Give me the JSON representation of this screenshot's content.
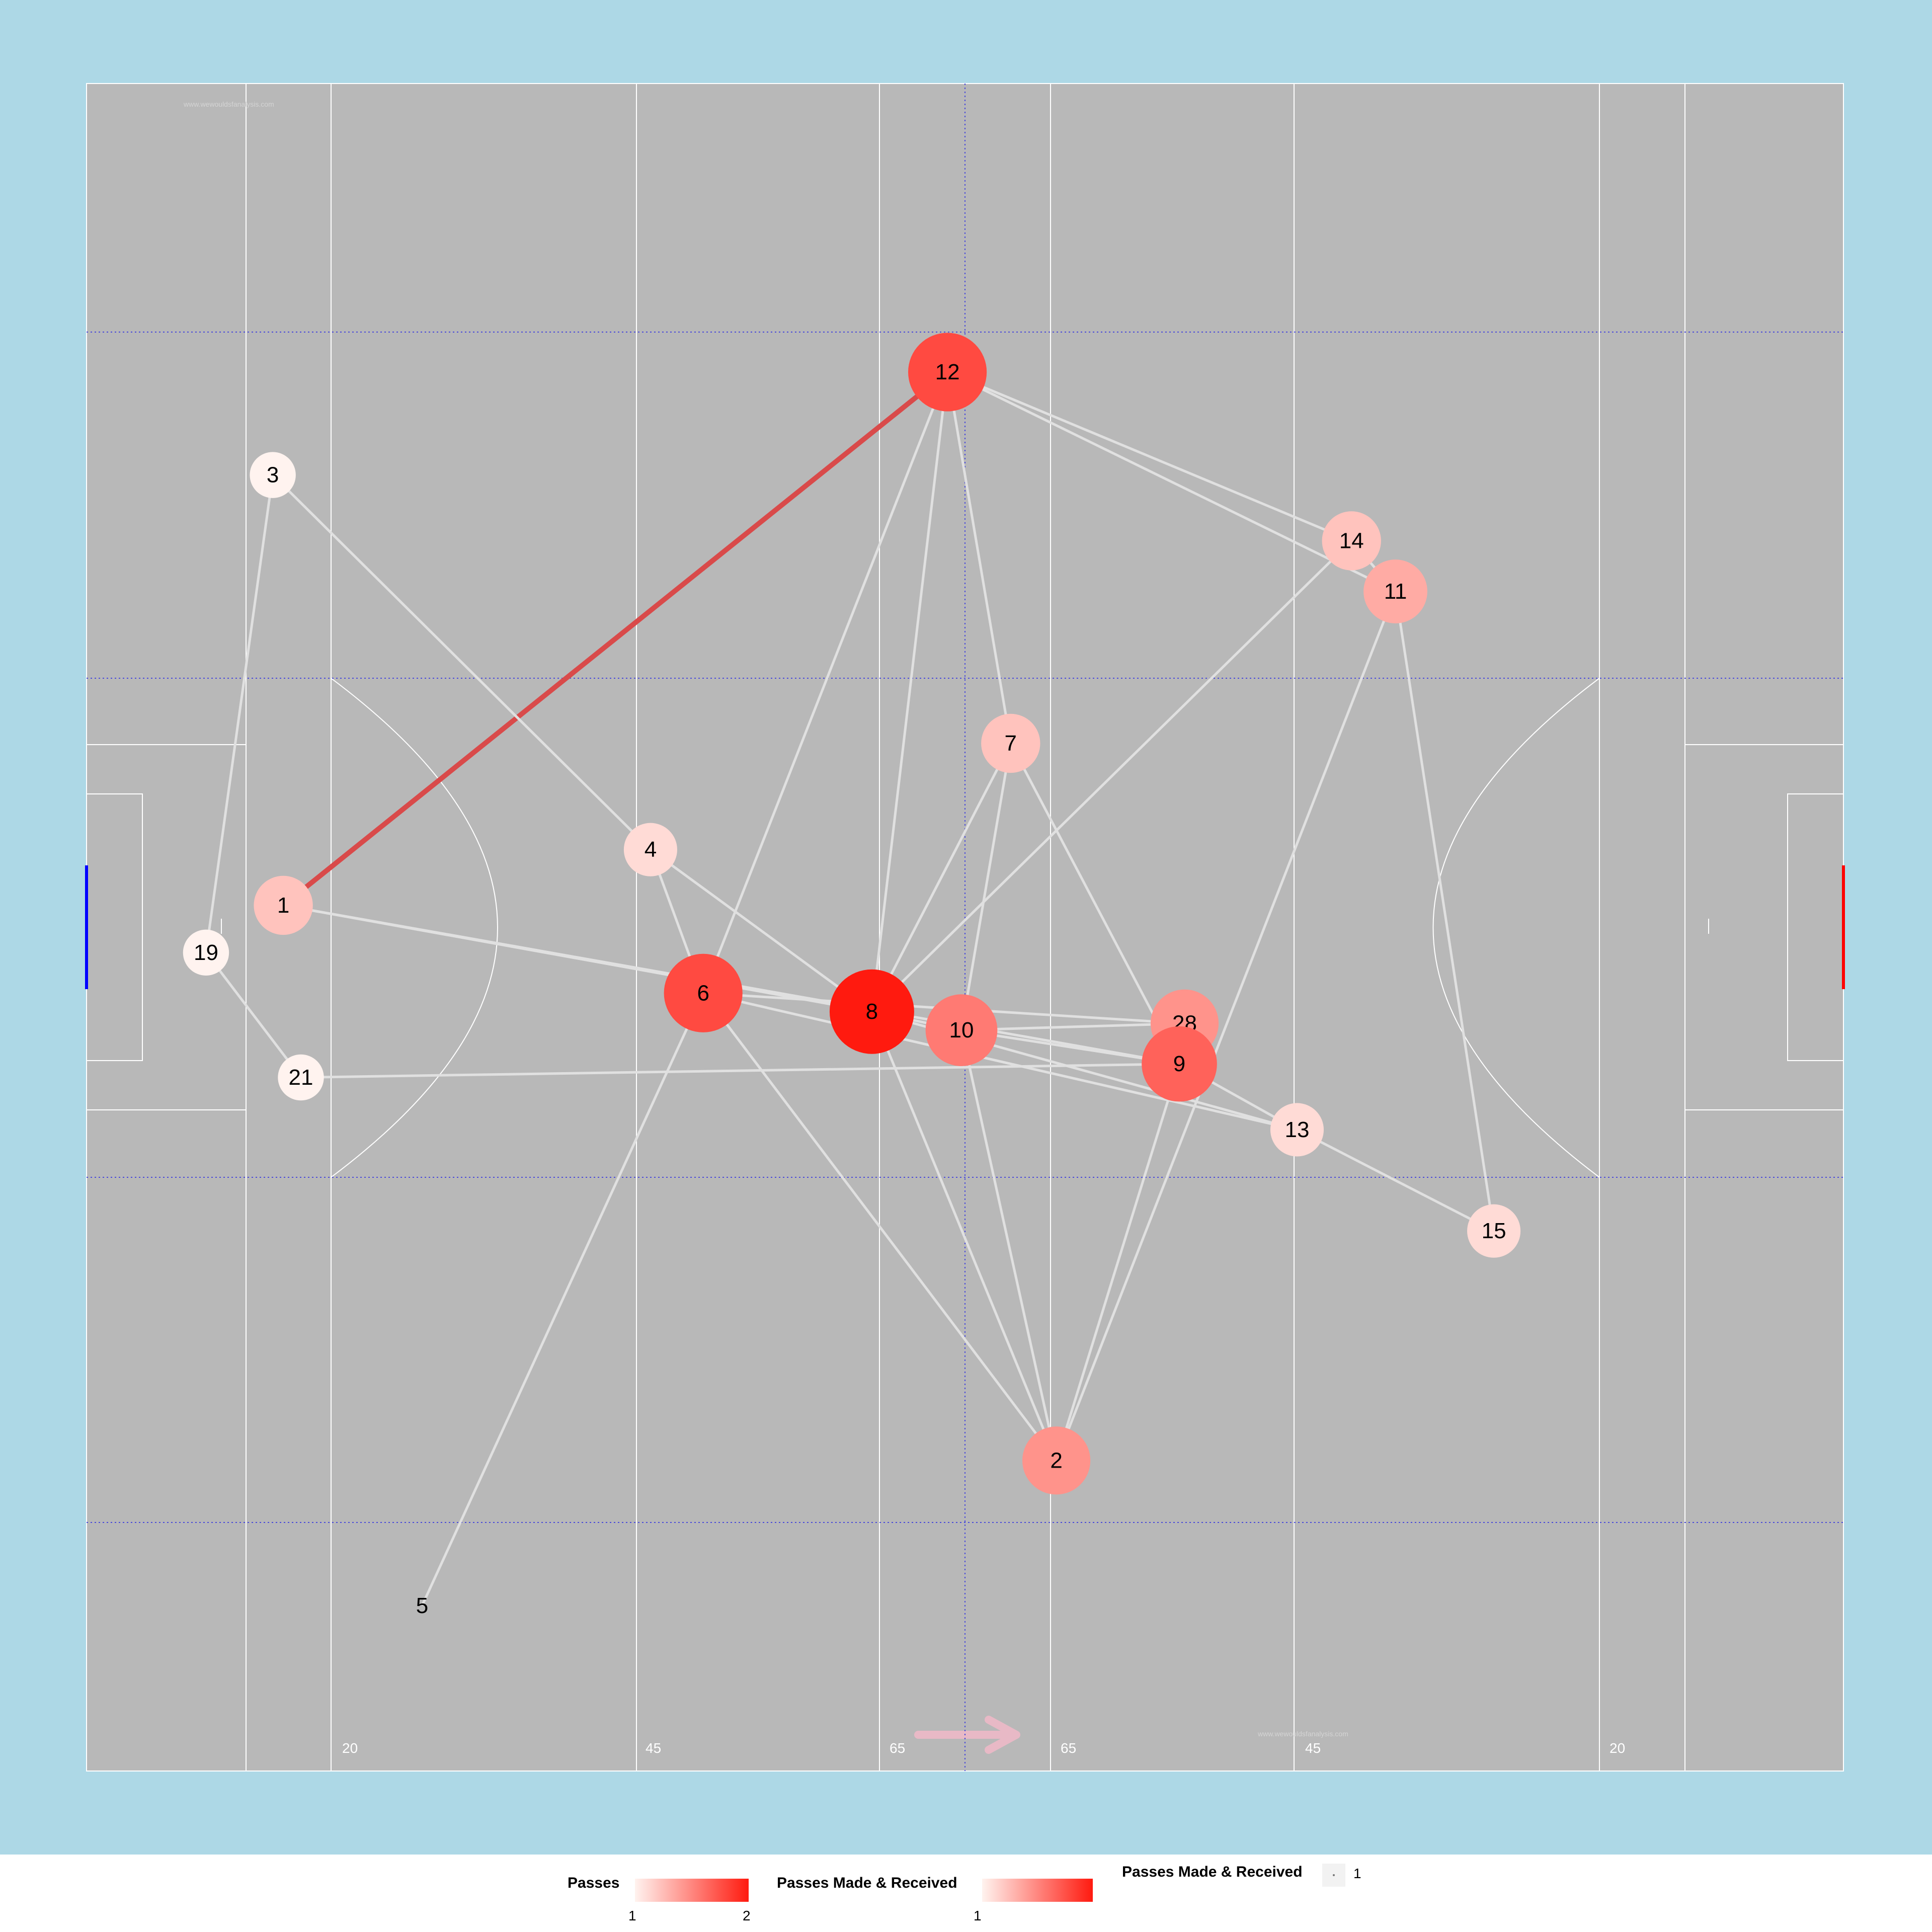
{
  "colors": {
    "panel_bg": "#add8e6",
    "pitch": "#b8b8b8",
    "pitch_lines": "#ffffff",
    "guide_lines": "#4a4ad9",
    "edge_default": "#e0e0e0",
    "edge_strong": "#d94a4a",
    "goal_left": "#0000ff",
    "goal_right": "#ff0000",
    "direction_arrow": "#e8b9c6",
    "legend_low": "#fff3ef",
    "legend_high": "#ff1a0f"
  },
  "pitch": {
    "watermark": "www.wewouldsfanalysis.com",
    "direction_arrow_icon": "right-arrow",
    "distance_marks": [
      {
        "id": "l20",
        "label": "20"
      },
      {
        "id": "l45",
        "label": "45"
      },
      {
        "id": "l65",
        "label": "65"
      },
      {
        "id": "r65",
        "label": "65"
      },
      {
        "id": "r45",
        "label": "45"
      },
      {
        "id": "r20",
        "label": "20"
      }
    ]
  },
  "chart_data": {
    "type": "network",
    "title": "",
    "node_metric": "Passes Made & Received",
    "nodes": [
      {
        "id": "12",
        "label": "12",
        "x": 49.0,
        "y": 82.9,
        "passes": 8
      },
      {
        "id": "3",
        "label": "3",
        "x": 10.6,
        "y": 76.8,
        "passes": 1
      },
      {
        "id": "14",
        "label": "14",
        "x": 72.0,
        "y": 72.9,
        "passes": 3
      },
      {
        "id": "11",
        "label": "11",
        "x": 74.5,
        "y": 69.9,
        "passes": 4
      },
      {
        "id": "7",
        "label": "7",
        "x": 52.6,
        "y": 60.9,
        "passes": 3
      },
      {
        "id": "4",
        "label": "4",
        "x": 32.1,
        "y": 54.6,
        "passes": 2
      },
      {
        "id": "1",
        "label": "1",
        "x": 11.2,
        "y": 51.3,
        "passes": 3
      },
      {
        "id": "19",
        "label": "19",
        "x": 6.8,
        "y": 48.5,
        "passes": 1
      },
      {
        "id": "6",
        "label": "6",
        "x": 35.1,
        "y": 46.1,
        "passes": 8
      },
      {
        "id": "8",
        "label": "8",
        "x": 44.7,
        "y": 45.0,
        "passes": 10
      },
      {
        "id": "10",
        "label": "10",
        "x": 49.8,
        "y": 43.9,
        "passes": 6
      },
      {
        "id": "28",
        "label": "28",
        "x": 62.5,
        "y": 44.3,
        "passes": 5
      },
      {
        "id": "9",
        "label": "9",
        "x": 62.2,
        "y": 41.9,
        "passes": 7
      },
      {
        "id": "21",
        "label": "21",
        "x": 12.2,
        "y": 41.1,
        "passes": 1
      },
      {
        "id": "13",
        "label": "13",
        "x": 68.9,
        "y": 38.0,
        "passes": 2
      },
      {
        "id": "15",
        "label": "15",
        "x": 80.1,
        "y": 32.0,
        "passes": 2
      },
      {
        "id": "2",
        "label": "2",
        "x": 55.2,
        "y": 18.4,
        "passes": 5
      },
      {
        "id": "5",
        "label": "5",
        "x": 19.1,
        "y": 9.8,
        "passes": 0
      }
    ],
    "edges": [
      {
        "from": "1",
        "to": "12",
        "passes": 2
      },
      {
        "from": "3",
        "to": "19",
        "passes": 1
      },
      {
        "from": "3",
        "to": "4",
        "passes": 1
      },
      {
        "from": "19",
        "to": "21",
        "passes": 1
      },
      {
        "from": "12",
        "to": "6",
        "passes": 1
      },
      {
        "from": "12",
        "to": "8",
        "passes": 1
      },
      {
        "from": "12",
        "to": "7",
        "passes": 1
      },
      {
        "from": "12",
        "to": "14",
        "passes": 1
      },
      {
        "from": "12",
        "to": "11",
        "passes": 1
      },
      {
        "from": "14",
        "to": "11",
        "passes": 1
      },
      {
        "from": "14",
        "to": "8",
        "passes": 1
      },
      {
        "from": "11",
        "to": "15",
        "passes": 1
      },
      {
        "from": "11",
        "to": "2",
        "passes": 1
      },
      {
        "from": "7",
        "to": "8",
        "passes": 1
      },
      {
        "from": "7",
        "to": "10",
        "passes": 1
      },
      {
        "from": "7",
        "to": "9",
        "passes": 1
      },
      {
        "from": "4",
        "to": "6",
        "passes": 1
      },
      {
        "from": "4",
        "to": "8",
        "passes": 1
      },
      {
        "from": "1",
        "to": "8",
        "passes": 1
      },
      {
        "from": "1",
        "to": "9",
        "passes": 1
      },
      {
        "from": "6",
        "to": "28",
        "passes": 1
      },
      {
        "from": "6",
        "to": "13",
        "passes": 1
      },
      {
        "from": "6",
        "to": "2",
        "passes": 1
      },
      {
        "from": "6",
        "to": "5",
        "passes": 1
      },
      {
        "from": "8",
        "to": "10",
        "passes": 1
      },
      {
        "from": "8",
        "to": "13",
        "passes": 1
      },
      {
        "from": "8",
        "to": "2",
        "passes": 1
      },
      {
        "from": "10",
        "to": "28",
        "passes": 1
      },
      {
        "from": "10",
        "to": "9",
        "passes": 1
      },
      {
        "from": "10",
        "to": "2",
        "passes": 1
      },
      {
        "from": "21",
        "to": "9",
        "passes": 1
      },
      {
        "from": "9",
        "to": "13",
        "passes": 1
      },
      {
        "from": "9",
        "to": "2",
        "passes": 1
      },
      {
        "from": "13",
        "to": "15",
        "passes": 1
      }
    ]
  },
  "legend": {
    "passes": {
      "title": "Passes",
      "min": "1",
      "max": "2"
    },
    "made_received_color": {
      "title": "Passes Made & Received",
      "min": "1"
    },
    "made_received_size": {
      "title": "Passes Made & Received",
      "value": "1"
    }
  }
}
